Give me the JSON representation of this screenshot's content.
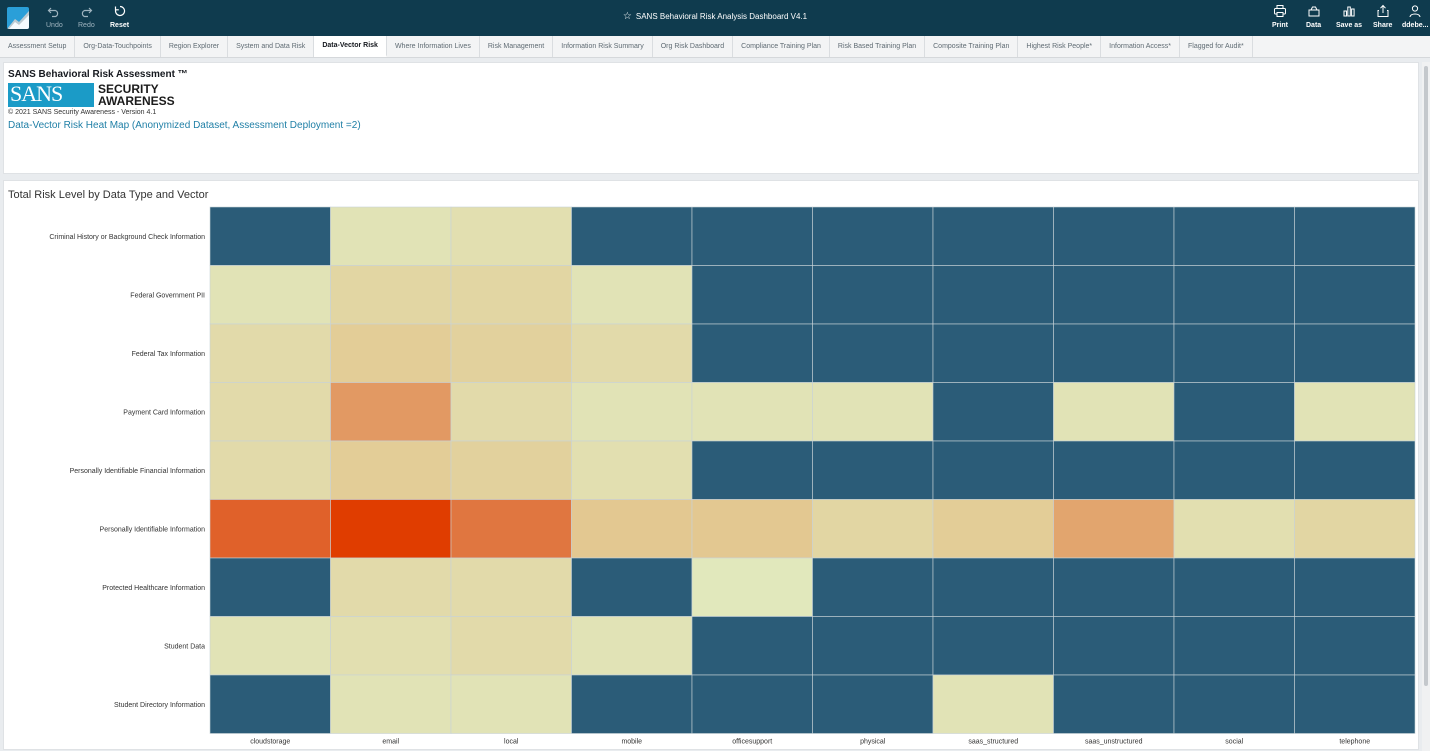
{
  "toolbar": {
    "undo_label": "Undo",
    "redo_label": "Redo",
    "reset_label": "Reset",
    "dashboard_title": "SANS Behavioral Risk Analysis Dashboard V4.1",
    "print_label": "Print",
    "data_label": "Data",
    "save_as_label": "Save as",
    "share_label": "Share",
    "user_label": "ddebe..."
  },
  "tabs": [
    {
      "label": "Assessment Setup",
      "active": false
    },
    {
      "label": "Org-Data-Touchpoints",
      "active": false
    },
    {
      "label": "Region Explorer",
      "active": false
    },
    {
      "label": "System and Data Risk",
      "active": false
    },
    {
      "label": "Data-Vector Risk",
      "active": true
    },
    {
      "label": "Where Information Lives",
      "active": false
    },
    {
      "label": "Risk Management",
      "active": false
    },
    {
      "label": "Information Risk Summary",
      "active": false
    },
    {
      "label": "Org Risk Dashboard",
      "active": false
    },
    {
      "label": "Compliance Training Plan",
      "active": false
    },
    {
      "label": "Risk Based Training Plan",
      "active": false
    },
    {
      "label": "Composite Training Plan",
      "active": false
    },
    {
      "label": "Highest Risk People*",
      "active": false
    },
    {
      "label": "Information Access*",
      "active": false
    },
    {
      "label": "Flagged for Audit*",
      "active": false
    }
  ],
  "header": {
    "app_title": "SANS Behavioral Risk Assessment ™",
    "logo_left": "SANS",
    "logo_line1": "SECURITY",
    "logo_line2": "AWARENESS",
    "copyright": "© 2021 SANS Security Awareness - Version 4.1",
    "subtitle": "Data-Vector Risk Heat Map (Anonymized Dataset, Assessment Deployment =2)"
  },
  "colors": {
    "topbar": "#0f3b4e",
    "accent": "#1f7fa6",
    "heat_none": "#2b5c78",
    "heat_low": "#e1e8bc",
    "heat_mid": "#e3c891",
    "heat_high": "#e06a34",
    "heat_max": "#e03d00"
  },
  "chart_data": {
    "type": "heatmap",
    "title": "Total Risk Level by Data Type and Vector",
    "x": [
      "cloudstorage",
      "email",
      "local",
      "mobile",
      "officesupport",
      "physical",
      "saas_structured",
      "saas_unstructured",
      "social",
      "telephone"
    ],
    "y": [
      "Criminal History or Background Check Information",
      "Federal Government PII",
      "Federal Tax Information",
      "Payment Card Information",
      "Personally Identifiable Financial Information",
      "Personally Identifiable Information",
      "Protected Healthcare Information",
      "Student Data",
      "Student Directory Information"
    ],
    "values": [
      [
        null,
        0.05,
        0.1,
        null,
        null,
        null,
        null,
        null,
        null,
        null
      ],
      [
        0.05,
        0.2,
        0.2,
        0.05,
        null,
        null,
        null,
        null,
        null,
        null
      ],
      [
        0.15,
        0.3,
        0.25,
        0.15,
        null,
        null,
        null,
        null,
        null,
        null
      ],
      [
        0.15,
        0.55,
        0.15,
        0.05,
        0.05,
        0.05,
        null,
        0.05,
        null,
        0.05
      ],
      [
        0.15,
        0.3,
        0.25,
        0.1,
        null,
        null,
        null,
        null,
        null,
        null
      ],
      [
        0.8,
        1.0,
        0.7,
        0.35,
        0.35,
        0.2,
        0.3,
        0.5,
        0.1,
        0.2
      ],
      [
        null,
        0.15,
        0.15,
        null,
        0.0,
        null,
        null,
        null,
        null,
        null
      ],
      [
        0.05,
        0.1,
        0.15,
        0.05,
        null,
        null,
        null,
        null,
        null,
        null
      ],
      [
        null,
        0.05,
        0.05,
        null,
        null,
        null,
        0.05,
        null,
        null,
        null
      ]
    ],
    "legend": "none",
    "grid": true
  }
}
